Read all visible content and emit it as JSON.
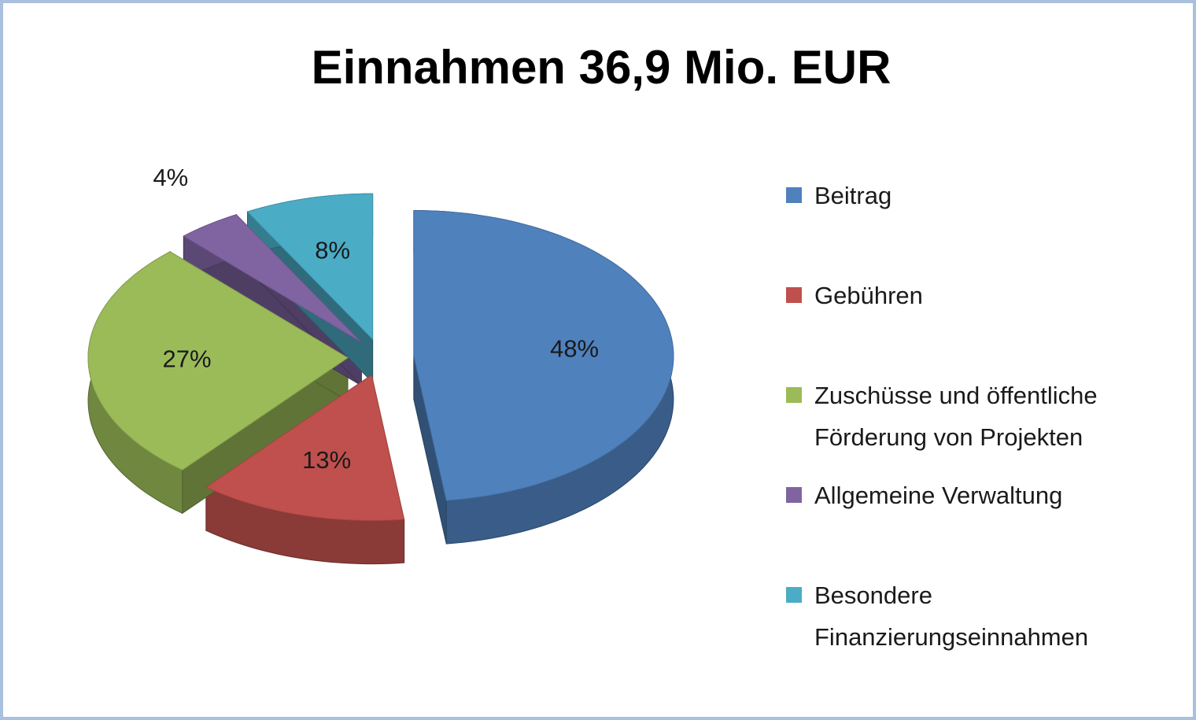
{
  "chart_data": {
    "type": "pie",
    "title": "Einnahmen 36,9 Mio. EUR",
    "categories": [
      "Beitrag",
      "Gebühren",
      "Zuschüsse und öffentliche Förderung von Projekten",
      "Allgemeine Verwaltung",
      "Besondere Finanzierungseinnahmen"
    ],
    "values": [
      48,
      13,
      27,
      4,
      8
    ],
    "value_labels": [
      "48%",
      "13%",
      "27%",
      "4%",
      "8%"
    ],
    "colors": [
      "#4f81bd",
      "#c0504d",
      "#9bbb59",
      "#8064a2",
      "#4bacc6"
    ],
    "legend": "right"
  }
}
